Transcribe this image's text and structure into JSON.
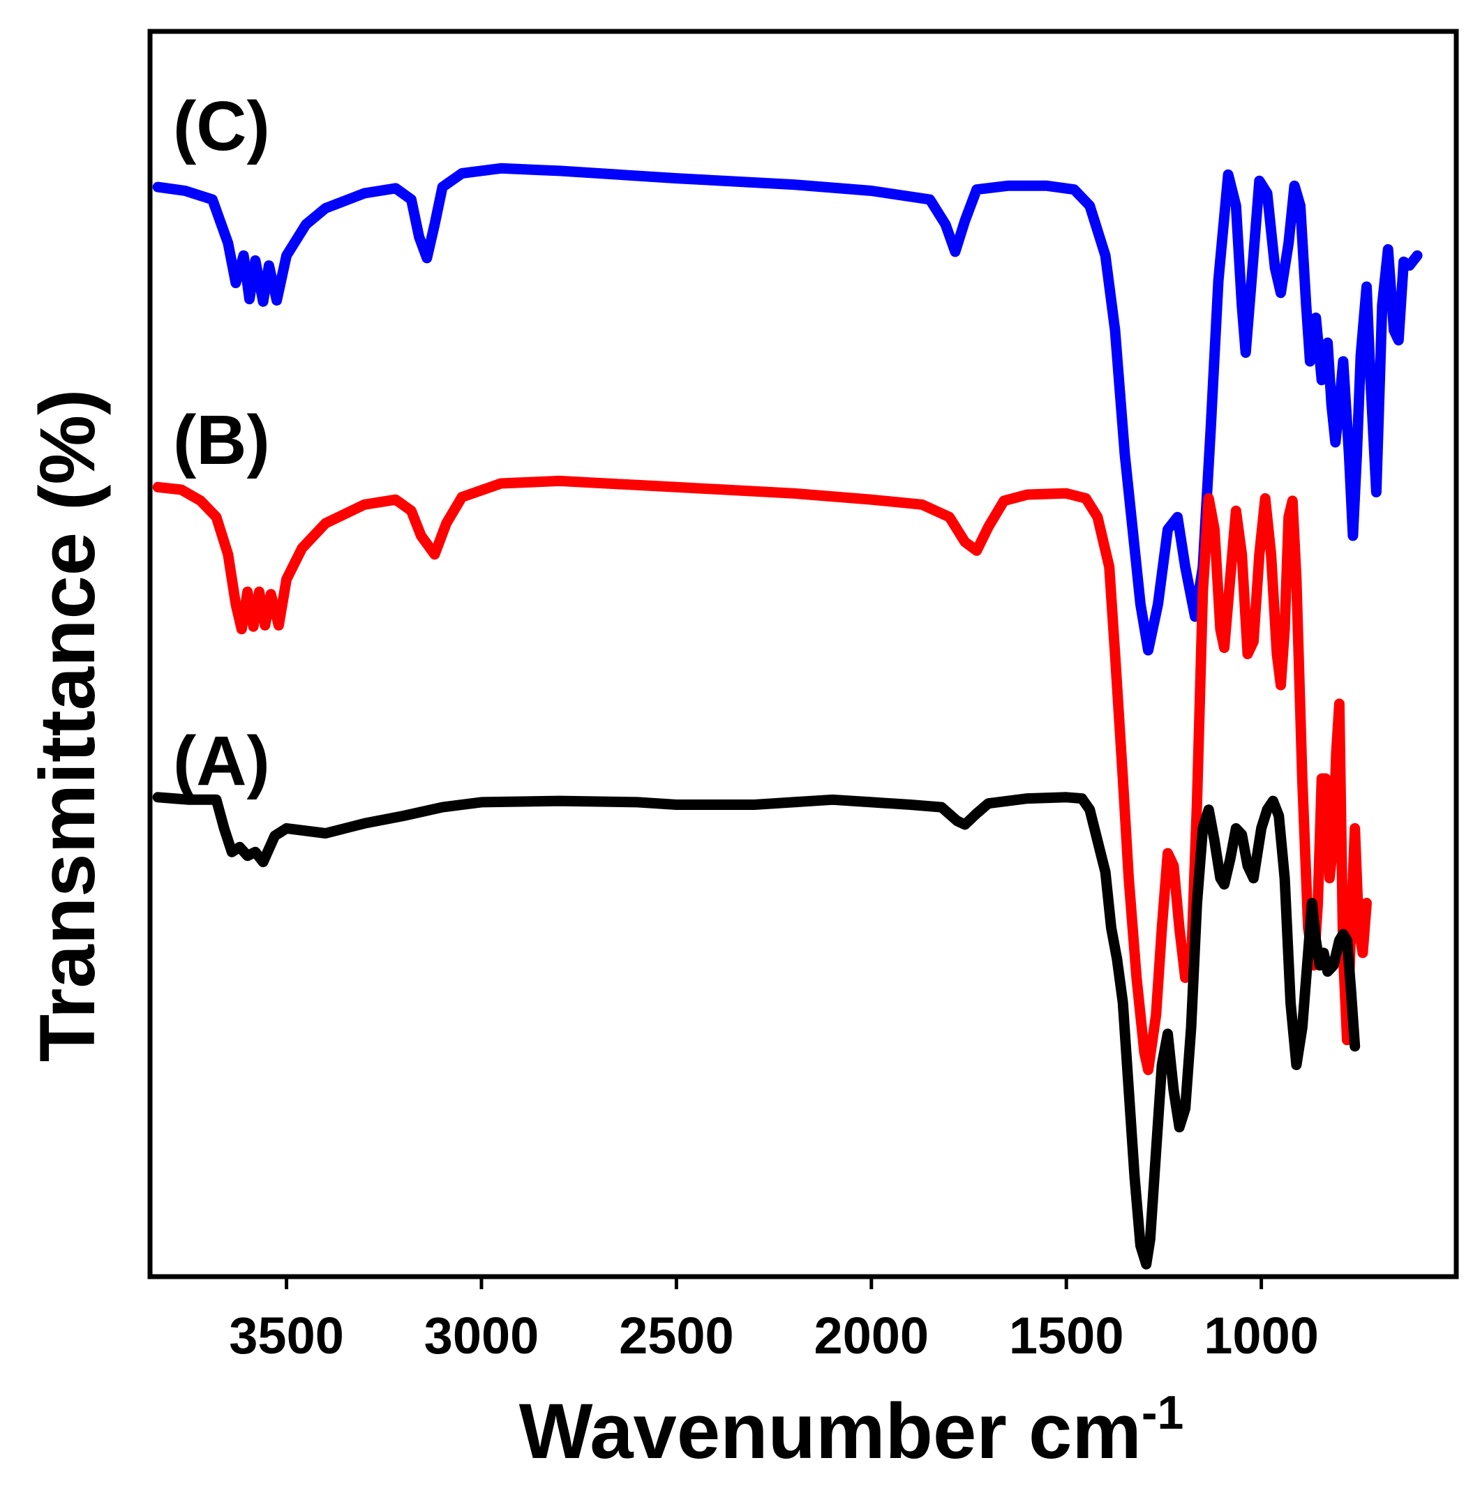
{
  "chart_data": {
    "type": "line",
    "title": "",
    "xlabel": "Wavenumber cm",
    "xlabel_superscript": "-1",
    "ylabel": "Transmittance (%)",
    "xlim": [
      3850,
      500
    ],
    "ylim": [
      0,
      100
    ],
    "x_reversed": true,
    "grid": false,
    "legend": "none",
    "xticks": [
      {
        "value": 3500,
        "label": "3500"
      },
      {
        "value": 3000,
        "label": "3000"
      },
      {
        "value": 2500,
        "label": "2500"
      },
      {
        "value": 2000,
        "label": "2000"
      },
      {
        "value": 1500,
        "label": "1500"
      },
      {
        "value": 1000,
        "label": "1000"
      }
    ],
    "series": [
      {
        "name": "(C)",
        "color": "#0000ff",
        "points": [
          [
            3830,
            87.5
          ],
          [
            3760,
            87.2
          ],
          [
            3690,
            86.5
          ],
          [
            3650,
            83
          ],
          [
            3630,
            79.8
          ],
          [
            3610,
            82
          ],
          [
            3595,
            78.5
          ],
          [
            3580,
            81.6
          ],
          [
            3560,
            78.3
          ],
          [
            3545,
            81.2
          ],
          [
            3525,
            78.4
          ],
          [
            3500,
            82
          ],
          [
            3450,
            84.5
          ],
          [
            3400,
            85.8
          ],
          [
            3300,
            87
          ],
          [
            3220,
            87.4
          ],
          [
            3180,
            86.5
          ],
          [
            3160,
            83.5
          ],
          [
            3140,
            81.8
          ],
          [
            3120,
            84.5
          ],
          [
            3100,
            87.5
          ],
          [
            3050,
            88.6
          ],
          [
            2950,
            89
          ],
          [
            2800,
            88.8
          ],
          [
            2500,
            88.2
          ],
          [
            2200,
            87.7
          ],
          [
            2000,
            87.2
          ],
          [
            1850,
            86.5
          ],
          [
            1810,
            84.5
          ],
          [
            1785,
            82.3
          ],
          [
            1760,
            84.8
          ],
          [
            1730,
            87.3
          ],
          [
            1650,
            87.6
          ],
          [
            1550,
            87.6
          ],
          [
            1480,
            87.3
          ],
          [
            1440,
            86
          ],
          [
            1400,
            82
          ],
          [
            1375,
            76
          ],
          [
            1350,
            66
          ],
          [
            1330,
            60
          ],
          [
            1310,
            54
          ],
          [
            1290,
            50.3
          ],
          [
            1265,
            54
          ],
          [
            1240,
            60
          ],
          [
            1215,
            61
          ],
          [
            1195,
            57
          ],
          [
            1170,
            53
          ],
          [
            1150,
            57
          ],
          [
            1130,
            68
          ],
          [
            1110,
            80
          ],
          [
            1085,
            88.5
          ],
          [
            1065,
            86
          ],
          [
            1050,
            78
          ],
          [
            1040,
            74.2
          ],
          [
            1025,
            80
          ],
          [
            1005,
            88
          ],
          [
            985,
            87
          ],
          [
            965,
            81
          ],
          [
            950,
            79
          ],
          [
            930,
            83
          ],
          [
            915,
            87.6
          ],
          [
            900,
            86
          ],
          [
            885,
            78
          ],
          [
            875,
            73.5
          ],
          [
            860,
            77
          ],
          [
            845,
            72
          ],
          [
            830,
            75
          ],
          [
            820,
            70
          ],
          [
            810,
            67
          ],
          [
            800,
            70
          ],
          [
            790,
            73.5
          ],
          [
            775,
            66
          ],
          [
            765,
            59.5
          ],
          [
            755,
            66
          ],
          [
            745,
            74
          ],
          [
            730,
            79.5
          ],
          [
            720,
            72
          ],
          [
            705,
            63
          ],
          [
            690,
            78
          ],
          [
            675,
            82.5
          ],
          [
            660,
            76
          ],
          [
            648,
            75.2
          ],
          [
            635,
            81.5
          ],
          [
            620,
            81.2
          ],
          [
            600,
            82
          ]
        ]
      },
      {
        "name": "(B)",
        "color": "#ff0000",
        "points": [
          [
            3830,
            63.4
          ],
          [
            3770,
            63.2
          ],
          [
            3720,
            62.3
          ],
          [
            3680,
            61
          ],
          [
            3650,
            58
          ],
          [
            3630,
            54
          ],
          [
            3615,
            52
          ],
          [
            3600,
            55
          ],
          [
            3585,
            52.2
          ],
          [
            3570,
            55
          ],
          [
            3555,
            52.3
          ],
          [
            3540,
            54.8
          ],
          [
            3520,
            52.3
          ],
          [
            3500,
            56
          ],
          [
            3460,
            58.5
          ],
          [
            3400,
            60.5
          ],
          [
            3300,
            62
          ],
          [
            3220,
            62.4
          ],
          [
            3180,
            61.5
          ],
          [
            3155,
            59.5
          ],
          [
            3120,
            58
          ],
          [
            3090,
            60.5
          ],
          [
            3050,
            62.6
          ],
          [
            2950,
            63.7
          ],
          [
            2800,
            63.9
          ],
          [
            2500,
            63.4
          ],
          [
            2200,
            62.9
          ],
          [
            2000,
            62.4
          ],
          [
            1870,
            62
          ],
          [
            1800,
            61
          ],
          [
            1760,
            59
          ],
          [
            1730,
            58.3
          ],
          [
            1700,
            60.2
          ],
          [
            1660,
            62.3
          ],
          [
            1600,
            62.8
          ],
          [
            1500,
            62.9
          ],
          [
            1450,
            62.5
          ],
          [
            1420,
            61
          ],
          [
            1390,
            57
          ],
          [
            1375,
            50
          ],
          [
            1355,
            40
          ],
          [
            1340,
            32
          ],
          [
            1320,
            24
          ],
          [
            1300,
            18
          ],
          [
            1290,
            16.6
          ],
          [
            1270,
            21
          ],
          [
            1255,
            28
          ],
          [
            1240,
            34
          ],
          [
            1225,
            33
          ],
          [
            1210,
            28
          ],
          [
            1195,
            24
          ],
          [
            1180,
            25
          ],
          [
            1165,
            38
          ],
          [
            1150,
            55
          ],
          [
            1135,
            62.5
          ],
          [
            1120,
            60
          ],
          [
            1105,
            52
          ],
          [
            1095,
            50.5
          ],
          [
            1080,
            56
          ],
          [
            1065,
            61.5
          ],
          [
            1050,
            58
          ],
          [
            1035,
            50
          ],
          [
            1020,
            51
          ],
          [
            1005,
            58
          ],
          [
            990,
            62.5
          ],
          [
            975,
            58
          ],
          [
            960,
            50
          ],
          [
            950,
            47.5
          ],
          [
            940,
            52
          ],
          [
            930,
            61
          ],
          [
            920,
            62.3
          ],
          [
            910,
            56
          ],
          [
            895,
            40
          ],
          [
            880,
            28
          ],
          [
            865,
            25
          ],
          [
            855,
            30
          ],
          [
            845,
            40
          ],
          [
            835,
            40
          ],
          [
            825,
            32
          ],
          [
            815,
            35
          ],
          [
            808,
            42
          ],
          [
            800,
            46
          ],
          [
            790,
            26
          ],
          [
            780,
            19
          ],
          [
            770,
            28
          ],
          [
            760,
            36
          ],
          [
            750,
            28
          ],
          [
            740,
            26
          ],
          [
            730,
            30
          ]
        ]
      },
      {
        "name": "(A)",
        "color": "#000000",
        "points": [
          [
            3830,
            38.5
          ],
          [
            3750,
            38.3
          ],
          [
            3680,
            38.3
          ],
          [
            3660,
            36
          ],
          [
            3640,
            34.1
          ],
          [
            3620,
            34.5
          ],
          [
            3600,
            33.8
          ],
          [
            3580,
            34.1
          ],
          [
            3560,
            33.3
          ],
          [
            3530,
            35.4
          ],
          [
            3500,
            36
          ],
          [
            3400,
            35.6
          ],
          [
            3300,
            36.4
          ],
          [
            3200,
            37
          ],
          [
            3100,
            37.7
          ],
          [
            3000,
            38.1
          ],
          [
            2800,
            38.2
          ],
          [
            2600,
            38.1
          ],
          [
            2500,
            37.9
          ],
          [
            2400,
            37.9
          ],
          [
            2300,
            37.9
          ],
          [
            2200,
            38.1
          ],
          [
            2100,
            38.3
          ],
          [
            2000,
            38.1
          ],
          [
            1900,
            37.9
          ],
          [
            1820,
            37.7
          ],
          [
            1780,
            36.6
          ],
          [
            1760,
            36.3
          ],
          [
            1730,
            37.2
          ],
          [
            1700,
            38
          ],
          [
            1600,
            38.4
          ],
          [
            1500,
            38.5
          ],
          [
            1460,
            38.4
          ],
          [
            1440,
            37.5
          ],
          [
            1420,
            35
          ],
          [
            1400,
            32.5
          ],
          [
            1385,
            28
          ],
          [
            1370,
            25.5
          ],
          [
            1355,
            22
          ],
          [
            1340,
            15
          ],
          [
            1325,
            8
          ],
          [
            1310,
            2.5
          ],
          [
            1295,
            1
          ],
          [
            1285,
            3
          ],
          [
            1270,
            10
          ],
          [
            1255,
            17
          ],
          [
            1240,
            19.5
          ],
          [
            1225,
            15
          ],
          [
            1210,
            12
          ],
          [
            1195,
            13.5
          ],
          [
            1180,
            20
          ],
          [
            1165,
            30
          ],
          [
            1150,
            36
          ],
          [
            1135,
            37.5
          ],
          [
            1120,
            35
          ],
          [
            1105,
            32
          ],
          [
            1095,
            31.5
          ],
          [
            1080,
            33.5
          ],
          [
            1065,
            36
          ],
          [
            1050,
            35.5
          ],
          [
            1035,
            33
          ],
          [
            1020,
            32
          ],
          [
            1010,
            34
          ],
          [
            1000,
            36
          ],
          [
            985,
            37.5
          ],
          [
            970,
            38.2
          ],
          [
            955,
            37
          ],
          [
            940,
            32
          ],
          [
            925,
            22
          ],
          [
            910,
            17
          ],
          [
            895,
            20
          ],
          [
            880,
            26
          ],
          [
            870,
            30
          ],
          [
            860,
            27
          ],
          [
            850,
            25
          ],
          [
            840,
            26
          ],
          [
            830,
            24.5
          ],
          [
            815,
            25
          ],
          [
            800,
            27
          ],
          [
            790,
            27.5
          ],
          [
            780,
            27
          ],
          [
            770,
            23
          ],
          [
            760,
            18.5
          ]
        ]
      }
    ]
  }
}
